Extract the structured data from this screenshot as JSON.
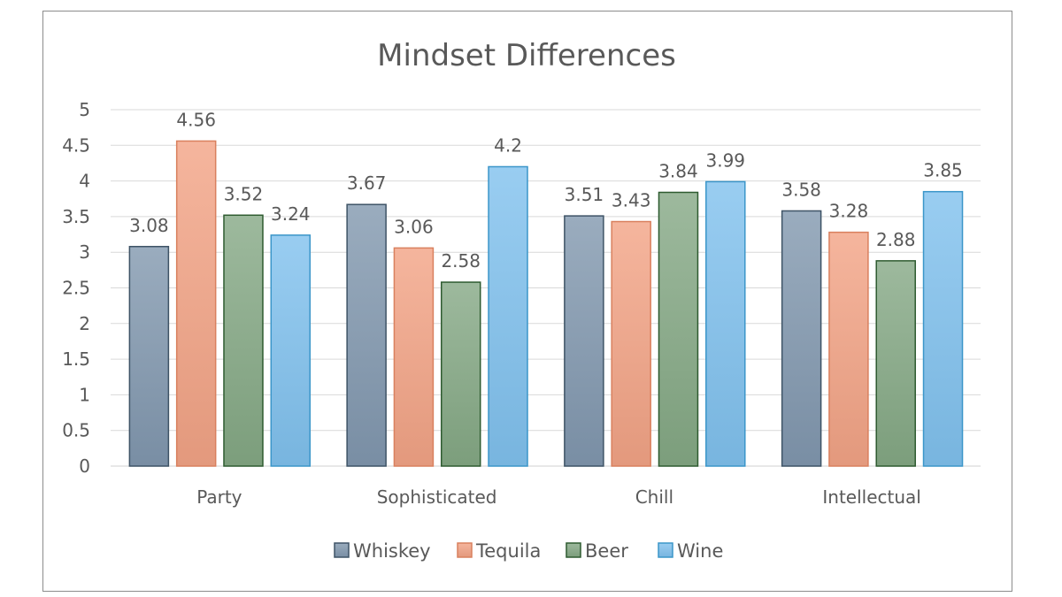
{
  "chart_data": {
    "type": "bar",
    "title": "Mindset Differences",
    "categories": [
      "Party",
      "Sophisticated",
      "Chill",
      "Intellectual"
    ],
    "series": [
      {
        "name": "Whiskey",
        "values": [
          3.08,
          3.67,
          3.51,
          3.58
        ],
        "color": "#8197ae",
        "border": "#3e5366"
      },
      {
        "name": "Tequila",
        "values": [
          4.56,
          3.06,
          3.43,
          3.28
        ],
        "color": "#f2a385",
        "border": "#d9805e"
      },
      {
        "name": "Beer",
        "values": [
          3.52,
          2.58,
          3.84,
          2.88
        ],
        "color": "#84a884",
        "border": "#2e5b30"
      },
      {
        "name": "Wine",
        "values": [
          3.24,
          4.2,
          3.99,
          3.85
        ],
        "color": "#80c1ed",
        "border": "#3b96c9"
      }
    ],
    "ylim": [
      0,
      5
    ],
    "yticks": [
      "0",
      "0.5",
      "1",
      "1.5",
      "2",
      "2.5",
      "3",
      "3.5",
      "4",
      "4.5",
      "5"
    ],
    "grid": true,
    "legend": "bottom",
    "data_labels": true
  }
}
